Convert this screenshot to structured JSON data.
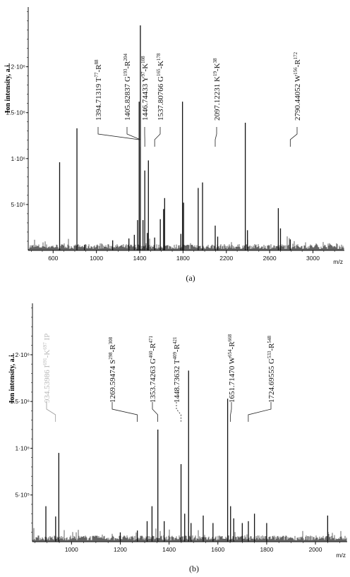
{
  "chart_data": [
    {
      "panel": "(a)",
      "type": "line",
      "ylabel": "Ion intensity, a.i.",
      "xunit": "m/z",
      "xlim": [
        370,
        3290
      ],
      "ylim": [
        0,
        2650000
      ],
      "x_ticks": [
        600,
        1000,
        1400,
        1800,
        2200,
        2600,
        3000
      ],
      "y_ticks": [
        {
          "value": 500000,
          "label": "5·10⁵"
        },
        {
          "value": 1000000,
          "label": "1·10⁶"
        },
        {
          "value": 1500000,
          "label": "1.5·10⁶"
        },
        {
          "value": 2000000,
          "label": "2·10⁶"
        }
      ],
      "peaks": [
        {
          "mz": 660,
          "intensity": 960000
        },
        {
          "mz": 820,
          "intensity": 1330000
        },
        {
          "mz": 890,
          "intensity": 60000
        },
        {
          "mz": 1150,
          "intensity": 110000
        },
        {
          "mz": 1300,
          "intensity": 130000
        },
        {
          "mz": 1350,
          "intensity": 170000
        },
        {
          "mz": 1380,
          "intensity": 330000
        },
        {
          "mz": 1394.7,
          "intensity": 1620000
        },
        {
          "mz": 1405.8,
          "intensity": 2450000
        },
        {
          "mz": 1430,
          "intensity": 330000
        },
        {
          "mz": 1446.7,
          "intensity": 870000
        },
        {
          "mz": 1470,
          "intensity": 190000
        },
        {
          "mz": 1480,
          "intensity": 980000
        },
        {
          "mz": 1537.8,
          "intensity": 140000
        },
        {
          "mz": 1590,
          "intensity": 340000
        },
        {
          "mz": 1620,
          "intensity": 450000
        },
        {
          "mz": 1630,
          "intensity": 570000
        },
        {
          "mz": 1780,
          "intensity": 180000
        },
        {
          "mz": 1795,
          "intensity": 1620000
        },
        {
          "mz": 1805,
          "intensity": 520000
        },
        {
          "mz": 1940,
          "intensity": 680000
        },
        {
          "mz": 1980,
          "intensity": 740000
        },
        {
          "mz": 2097.1,
          "intensity": 270000
        },
        {
          "mz": 2120,
          "intensity": 150000
        },
        {
          "mz": 2375,
          "intensity": 1390000
        },
        {
          "mz": 2395,
          "intensity": 220000
        },
        {
          "mz": 2680,
          "intensity": 460000
        },
        {
          "mz": 2700,
          "intensity": 240000
        },
        {
          "mz": 2790.4,
          "intensity": 120000
        }
      ],
      "labels": [
        {
          "mz_text": "1394.71319",
          "mz": 1394.7,
          "seq": "T",
          "a": "77",
          "b": "88",
          "anchor_mz": 1394.7
        },
        {
          "mz_text": "1405.82837",
          "mz": 1405.8,
          "seq": "G",
          "a": "193",
          "b": "204",
          "anchor_mz": 1405.8
        },
        {
          "mz_text": "1446.74433",
          "mz": 1446.7,
          "seq": "Y",
          "a": "97",
          "b": "108",
          "anchor_mz": 1446.7
        },
        {
          "mz_text": "1537.80766",
          "mz": 1537.8,
          "seq": "G",
          "a": "165",
          "b": "178",
          "anchor_mz": 1537.8
        },
        {
          "mz_text": "2097.12231",
          "mz": 2097.1,
          "seq": "K",
          "a": "19",
          "b": "38",
          "anchor_mz": 2097.1
        },
        {
          "mz_text": "2790.44052",
          "mz": 2790.4,
          "seq": "W",
          "a": "156",
          "b": "172",
          "anchor_mz": 2790.4
        }
      ],
      "caption": "(a)"
    },
    {
      "panel": "(b)",
      "type": "line",
      "ylabel": "Ion intensity, a.i.",
      "xunit": "m/z",
      "xlim": [
        840,
        2130
      ],
      "ylim": [
        0,
        2550000
      ],
      "x_ticks": [
        1000,
        1200,
        1400,
        1600,
        1800,
        2000
      ],
      "y_ticks": [
        {
          "value": 500000,
          "label": "5·10⁵"
        },
        {
          "value": 1000000,
          "label": "1·10⁶"
        },
        {
          "value": 1500000,
          "label": "1.5·10⁶"
        },
        {
          "value": 2000000,
          "label": "2·10⁶"
        }
      ],
      "peaks": [
        {
          "mz": 895,
          "intensity": 380000
        },
        {
          "mz": 935,
          "intensity": 270000
        },
        {
          "mz": 948,
          "intensity": 950000
        },
        {
          "mz": 1200,
          "intensity": 100000
        },
        {
          "mz": 1270,
          "intensity": 120000
        },
        {
          "mz": 1310,
          "intensity": 220000
        },
        {
          "mz": 1330,
          "intensity": 380000
        },
        {
          "mz": 1354,
          "intensity": 1200000
        },
        {
          "mz": 1380,
          "intensity": 220000
        },
        {
          "mz": 1449,
          "intensity": 830000
        },
        {
          "mz": 1464,
          "intensity": 300000
        },
        {
          "mz": 1480,
          "intensity": 1830000
        },
        {
          "mz": 1490,
          "intensity": 200000
        },
        {
          "mz": 1540,
          "intensity": 280000
        },
        {
          "mz": 1580,
          "intensity": 200000
        },
        {
          "mz": 1640,
          "intensity": 1530000
        },
        {
          "mz": 1652,
          "intensity": 380000
        },
        {
          "mz": 1665,
          "intensity": 250000
        },
        {
          "mz": 1700,
          "intensity": 200000
        },
        {
          "mz": 1725,
          "intensity": 220000
        },
        {
          "mz": 1750,
          "intensity": 300000
        },
        {
          "mz": 1800,
          "intensity": 200000
        },
        {
          "mz": 2050,
          "intensity": 280000
        }
      ],
      "labels": [
        {
          "mz_text": "934.53986",
          "mz": 934.5,
          "seq": "I",
          "a": "691",
          "b": "697",
          "suffix": "IP",
          "faded": true,
          "anchor_mz": 934.5
        },
        {
          "mz_text": "1269.59474",
          "mz": 1269.6,
          "seq": "S",
          "a": "298",
          "b": "308",
          "anchor_mz": 1269.6
        },
        {
          "mz_text": "1353.74263",
          "mz": 1353.7,
          "seq": "G",
          "a": "460",
          "b": "471",
          "anchor_mz": 1353.7
        },
        {
          "mz_text": "1448.73632",
          "mz": 1448.7,
          "seq": "T",
          "a": "409",
          "b": "421",
          "dotted": true,
          "anchor_mz": 1448.7
        },
        {
          "mz_text": "1651.71470",
          "mz": 1651.7,
          "seq": "W",
          "a": "654",
          "b": "668",
          "anchor_mz": 1651.7
        },
        {
          "mz_text": "1724.69555",
          "mz": 1724.7,
          "seq": "G",
          "a": "533",
          "b": "548",
          "anchor_mz": 1724.7
        }
      ],
      "caption": "(b)"
    }
  ]
}
